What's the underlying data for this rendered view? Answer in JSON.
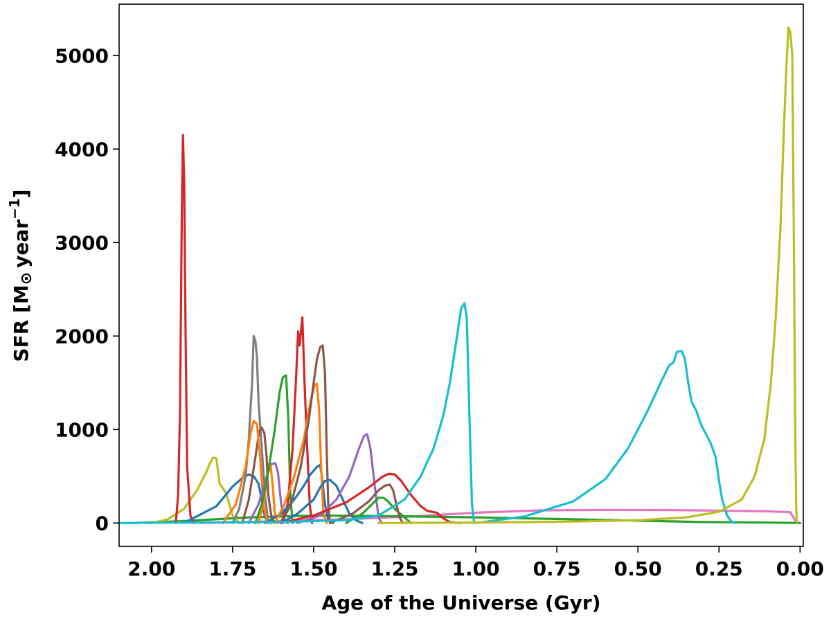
{
  "chart_data": {
    "type": "line",
    "title": "",
    "xlabel": "Age of the Universe (Gyr)",
    "ylabel_parts": [
      "SFR [M",
      "⊙",
      "year",
      "−1",
      "]"
    ],
    "x_reversed": true,
    "xlim": [
      2.1,
      -0.01
    ],
    "ylim": [
      -250,
      5550
    ],
    "xticks": [
      {
        "value": 2.0,
        "label": "2.00"
      },
      {
        "value": 1.75,
        "label": "1.75"
      },
      {
        "value": 1.5,
        "label": "1.50"
      },
      {
        "value": 1.25,
        "label": "1.25"
      },
      {
        "value": 1.0,
        "label": "1.00"
      },
      {
        "value": 0.75,
        "label": "0.75"
      },
      {
        "value": 0.5,
        "label": "0.50"
      },
      {
        "value": 0.25,
        "label": "0.25"
      },
      {
        "value": 0.0,
        "label": "0.00"
      }
    ],
    "yticks": [
      {
        "value": 0,
        "label": "0"
      },
      {
        "value": 1000,
        "label": "1000"
      },
      {
        "value": 2000,
        "label": "2000"
      },
      {
        "value": 3000,
        "label": "3000"
      },
      {
        "value": 4000,
        "label": "4000"
      },
      {
        "value": 5000,
        "label": "5000"
      }
    ],
    "grid": false,
    "legend": "none",
    "series": [
      {
        "color": "#e377c2",
        "points": [
          [
            1.85,
            0
          ],
          [
            1.6,
            20
          ],
          [
            1.4,
            40
          ],
          [
            1.2,
            70
          ],
          [
            1.0,
            110
          ],
          [
            0.8,
            135
          ],
          [
            0.6,
            140
          ],
          [
            0.4,
            138
          ],
          [
            0.2,
            130
          ],
          [
            0.1,
            125
          ],
          [
            0.03,
            115
          ],
          [
            0.01,
            0
          ]
        ]
      },
      {
        "color": "#2ca02c",
        "points": [
          [
            2.06,
            0
          ],
          [
            1.9,
            20
          ],
          [
            1.7,
            60
          ],
          [
            1.5,
            80
          ],
          [
            1.3,
            75
          ],
          [
            1.0,
            60
          ],
          [
            0.7,
            40
          ],
          [
            0.5,
            25
          ],
          [
            0.3,
            10
          ],
          [
            0.1,
            5
          ],
          [
            0.0,
            0
          ]
        ]
      },
      {
        "color": "#bcbd22",
        "points": [
          [
            2.0,
            0
          ],
          [
            1.95,
            40
          ],
          [
            1.9,
            150
          ],
          [
            1.86,
            350
          ],
          [
            1.83,
            550
          ],
          [
            1.82,
            640
          ],
          [
            1.81,
            700
          ],
          [
            1.8,
            690
          ],
          [
            1.79,
            420
          ],
          [
            1.77,
            320
          ],
          [
            1.75,
            80
          ],
          [
            1.73,
            0
          ]
        ]
      },
      {
        "color": "#d62728",
        "points": [
          [
            1.925,
            0
          ],
          [
            1.918,
            300
          ],
          [
            1.912,
            1200
          ],
          [
            1.907,
            3200
          ],
          [
            1.903,
            4150
          ],
          [
            1.899,
            3600
          ],
          [
            1.895,
            2000
          ],
          [
            1.89,
            600
          ],
          [
            1.88,
            80
          ],
          [
            1.87,
            0
          ]
        ]
      },
      {
        "color": "#1f77b4",
        "points": [
          [
            1.9,
            0
          ],
          [
            1.8,
            180
          ],
          [
            1.75,
            390
          ],
          [
            1.72,
            480
          ],
          [
            1.7,
            520
          ],
          [
            1.685,
            500
          ],
          [
            1.67,
            420
          ],
          [
            1.66,
            250
          ],
          [
            1.65,
            60
          ],
          [
            1.64,
            0
          ]
        ]
      },
      {
        "color": "#7f7f7f",
        "points": [
          [
            1.75,
            0
          ],
          [
            1.73,
            150
          ],
          [
            1.71,
            500
          ],
          [
            1.7,
            900
          ],
          [
            1.69,
            1500
          ],
          [
            1.685,
            2000
          ],
          [
            1.68,
            1950
          ],
          [
            1.675,
            1780
          ],
          [
            1.67,
            1300
          ],
          [
            1.66,
            800
          ],
          [
            1.65,
            300
          ],
          [
            1.64,
            0
          ]
        ]
      },
      {
        "color": "#8c564b",
        "points": [
          [
            1.72,
            0
          ],
          [
            1.7,
            250
          ],
          [
            1.68,
            700
          ],
          [
            1.668,
            980
          ],
          [
            1.66,
            1020
          ],
          [
            1.652,
            960
          ],
          [
            1.645,
            700
          ],
          [
            1.64,
            300
          ],
          [
            1.63,
            60
          ],
          [
            1.62,
            0
          ]
        ]
      },
      {
        "color": "#ff7f0e",
        "points": [
          [
            1.78,
            0
          ],
          [
            1.74,
            200
          ],
          [
            1.71,
            600
          ],
          [
            1.695,
            950
          ],
          [
            1.685,
            1090
          ],
          [
            1.675,
            1060
          ],
          [
            1.665,
            700
          ],
          [
            1.655,
            200
          ],
          [
            1.645,
            30
          ],
          [
            1.63,
            0
          ]
        ]
      },
      {
        "color": "#9467bd",
        "points": [
          [
            1.7,
            0
          ],
          [
            1.67,
            200
          ],
          [
            1.645,
            500
          ],
          [
            1.63,
            630
          ],
          [
            1.618,
            640
          ],
          [
            1.61,
            540
          ],
          [
            1.6,
            200
          ],
          [
            1.59,
            40
          ],
          [
            1.58,
            0
          ]
        ]
      },
      {
        "color": "#ff7f0e",
        "points": [
          [
            1.67,
            0
          ],
          [
            1.655,
            200
          ],
          [
            1.64,
            550
          ],
          [
            1.633,
            620
          ],
          [
            1.626,
            400
          ],
          [
            1.62,
            100
          ],
          [
            1.61,
            0
          ]
        ]
      },
      {
        "color": "#2ca02c",
        "points": [
          [
            1.68,
            0
          ],
          [
            1.66,
            200
          ],
          [
            1.64,
            550
          ],
          [
            1.62,
            1000
          ],
          [
            1.605,
            1400
          ],
          [
            1.595,
            1560
          ],
          [
            1.585,
            1580
          ],
          [
            1.578,
            1100
          ],
          [
            1.572,
            300
          ],
          [
            1.565,
            0
          ]
        ]
      },
      {
        "color": "#d62728",
        "points": [
          [
            1.6,
            0
          ],
          [
            1.58,
            200
          ],
          [
            1.565,
            800
          ],
          [
            1.555,
            1500
          ],
          [
            1.548,
            2050
          ],
          [
            1.543,
            1900
          ],
          [
            1.538,
            2100
          ],
          [
            1.535,
            2200
          ],
          [
            1.532,
            1900
          ],
          [
            1.528,
            1500
          ],
          [
            1.52,
            800
          ],
          [
            1.512,
            200
          ],
          [
            1.505,
            0
          ]
        ]
      },
      {
        "color": "#1f77b4",
        "points": [
          [
            1.65,
            0
          ],
          [
            1.6,
            100
          ],
          [
            1.56,
            250
          ],
          [
            1.53,
            400
          ],
          [
            1.51,
            520
          ],
          [
            1.49,
            600
          ],
          [
            1.48,
            620
          ],
          [
            1.475,
            500
          ],
          [
            1.465,
            200
          ],
          [
            1.455,
            30
          ],
          [
            1.44,
            0
          ]
        ]
      },
      {
        "color": "#ff7f0e",
        "points": [
          [
            1.62,
            0
          ],
          [
            1.59,
            200
          ],
          [
            1.56,
            500
          ],
          [
            1.53,
            900
          ],
          [
            1.51,
            1300
          ],
          [
            1.497,
            1480
          ],
          [
            1.49,
            1490
          ],
          [
            1.483,
            1200
          ],
          [
            1.477,
            600
          ],
          [
            1.47,
            100
          ],
          [
            1.46,
            0
          ]
        ]
      },
      {
        "color": "#8c564b",
        "points": [
          [
            1.6,
            0
          ],
          [
            1.57,
            200
          ],
          [
            1.54,
            600
          ],
          [
            1.515,
            1100
          ],
          [
            1.5,
            1500
          ],
          [
            1.49,
            1750
          ],
          [
            1.48,
            1880
          ],
          [
            1.472,
            1900
          ],
          [
            1.465,
            1600
          ],
          [
            1.46,
            800
          ],
          [
            1.455,
            200
          ],
          [
            1.45,
            0
          ]
        ]
      },
      {
        "color": "#1f77b4",
        "points": [
          [
            1.6,
            0
          ],
          [
            1.55,
            100
          ],
          [
            1.5,
            250
          ],
          [
            1.48,
            380
          ],
          [
            1.465,
            450
          ],
          [
            1.45,
            460
          ],
          [
            1.43,
            400
          ],
          [
            1.41,
            250
          ],
          [
            1.39,
            100
          ],
          [
            1.37,
            30
          ],
          [
            1.35,
            0
          ]
        ]
      },
      {
        "color": "#9467bd",
        "points": [
          [
            1.55,
            0
          ],
          [
            1.48,
            80
          ],
          [
            1.43,
            250
          ],
          [
            1.39,
            500
          ],
          [
            1.36,
            800
          ],
          [
            1.345,
            930
          ],
          [
            1.335,
            950
          ],
          [
            1.325,
            800
          ],
          [
            1.31,
            350
          ],
          [
            1.3,
            60
          ],
          [
            1.29,
            0
          ]
        ]
      },
      {
        "color": "#2ca02c",
        "points": [
          [
            1.4,
            0
          ],
          [
            1.35,
            100
          ],
          [
            1.32,
            200
          ],
          [
            1.3,
            270
          ],
          [
            1.285,
            270
          ],
          [
            1.27,
            230
          ],
          [
            1.25,
            150
          ],
          [
            1.22,
            60
          ],
          [
            1.2,
            0
          ]
        ]
      },
      {
        "color": "#8c564b",
        "points": [
          [
            1.45,
            0
          ],
          [
            1.38,
            100
          ],
          [
            1.33,
            230
          ],
          [
            1.3,
            350
          ],
          [
            1.28,
            400
          ],
          [
            1.265,
            410
          ],
          [
            1.255,
            350
          ],
          [
            1.245,
            200
          ],
          [
            1.235,
            60
          ],
          [
            1.225,
            0
          ]
        ]
      },
      {
        "color": "#d62728",
        "points": [
          [
            1.6,
            0
          ],
          [
            1.5,
            80
          ],
          [
            1.4,
            220
          ],
          [
            1.33,
            380
          ],
          [
            1.29,
            490
          ],
          [
            1.27,
            525
          ],
          [
            1.25,
            520
          ],
          [
            1.23,
            450
          ],
          [
            1.2,
            300
          ],
          [
            1.17,
            180
          ],
          [
            1.15,
            130
          ],
          [
            1.12,
            110
          ],
          [
            1.1,
            50
          ],
          [
            1.08,
            10
          ],
          [
            1.05,
            0
          ]
        ]
      },
      {
        "color": "#17becf",
        "points": [
          [
            2.1,
            0
          ],
          [
            1.9,
            5
          ],
          [
            1.6,
            10
          ],
          [
            1.4,
            30
          ],
          [
            1.3,
            80
          ],
          [
            1.22,
            250
          ],
          [
            1.17,
            500
          ],
          [
            1.13,
            800
          ],
          [
            1.1,
            1150
          ],
          [
            1.08,
            1500
          ],
          [
            1.06,
            1950
          ],
          [
            1.045,
            2300
          ],
          [
            1.035,
            2350
          ],
          [
            1.028,
            2200
          ],
          [
            1.02,
            1200
          ],
          [
            1.012,
            200
          ],
          [
            1.005,
            0
          ]
        ]
      },
      {
        "color": "#17becf",
        "points": [
          [
            1.0,
            0
          ],
          [
            0.85,
            70
          ],
          [
            0.7,
            230
          ],
          [
            0.6,
            470
          ],
          [
            0.53,
            800
          ],
          [
            0.47,
            1200
          ],
          [
            0.43,
            1500
          ],
          [
            0.405,
            1680
          ],
          [
            0.39,
            1720
          ],
          [
            0.38,
            1830
          ],
          [
            0.365,
            1840
          ],
          [
            0.355,
            1750
          ],
          [
            0.345,
            1500
          ],
          [
            0.335,
            1300
          ],
          [
            0.32,
            1200
          ],
          [
            0.305,
            1050
          ],
          [
            0.29,
            950
          ],
          [
            0.275,
            850
          ],
          [
            0.26,
            700
          ],
          [
            0.25,
            450
          ],
          [
            0.24,
            250
          ],
          [
            0.225,
            80
          ],
          [
            0.21,
            10
          ],
          [
            0.2,
            0
          ]
        ]
      },
      {
        "color": "#bcbd22",
        "points": [
          [
            1.3,
            0
          ],
          [
            1.0,
            5
          ],
          [
            0.7,
            15
          ],
          [
            0.5,
            30
          ],
          [
            0.35,
            60
          ],
          [
            0.25,
            120
          ],
          [
            0.18,
            250
          ],
          [
            0.14,
            500
          ],
          [
            0.11,
            900
          ],
          [
            0.09,
            1500
          ],
          [
            0.075,
            2200
          ],
          [
            0.06,
            3200
          ],
          [
            0.05,
            4200
          ],
          [
            0.042,
            4900
          ],
          [
            0.036,
            5300
          ],
          [
            0.03,
            5250
          ],
          [
            0.024,
            5000
          ],
          [
            0.019,
            3000
          ],
          [
            0.015,
            1000
          ],
          [
            0.012,
            200
          ],
          [
            0.01,
            0
          ]
        ]
      }
    ]
  }
}
